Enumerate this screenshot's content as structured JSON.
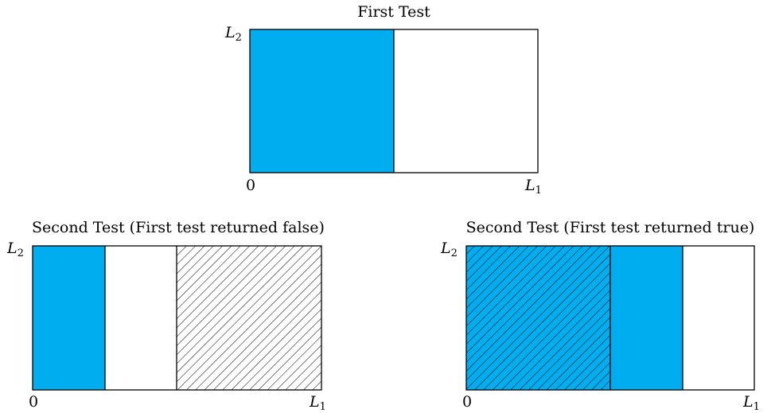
{
  "panels": [
    {
      "title": "First Test",
      "y_label": "L",
      "y_label_sub": "2",
      "x_start_label": "0",
      "x_end_label": "L",
      "x_end_label_sub": "1",
      "fill_color": "#00aeef"
    },
    {
      "title": "Second Test (First test returned false)",
      "y_label": "L",
      "y_label_sub": "2",
      "x_start_label": "0",
      "x_end_label": "L",
      "x_end_label_sub": "1",
      "fill_color": "#00aeef"
    },
    {
      "title": "Second Test (First test returned true)",
      "y_label": "L",
      "y_label_sub": "2",
      "x_start_label": "0",
      "x_end_label": "L",
      "x_end_label_sub": "1",
      "fill_color": "#00aeef"
    }
  ]
}
